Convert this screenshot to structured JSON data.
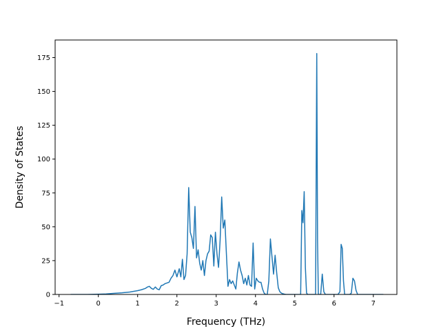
{
  "chart_data": {
    "type": "line",
    "title": "",
    "xlabel": "Frequency (THz)",
    "ylabel": "Density of States",
    "xlim": [
      -1.1,
      7.6
    ],
    "ylim": [
      0,
      188
    ],
    "xticks": [
      -1,
      0,
      1,
      2,
      3,
      4,
      5,
      6,
      7
    ],
    "yticks": [
      0,
      25,
      50,
      75,
      100,
      125,
      150,
      175
    ],
    "grid": false,
    "legend": "none",
    "colors": {
      "line": "#1f77b4"
    },
    "series": [
      {
        "x": [
          -0.7,
          -0.5,
          -0.3,
          -0.1,
          0.0,
          0.2,
          0.4,
          0.6,
          0.8,
          1.0,
          1.1,
          1.2,
          1.25,
          1.3,
          1.35,
          1.4,
          1.45,
          1.5,
          1.55,
          1.6,
          1.65,
          1.7,
          1.75,
          1.8,
          1.85,
          1.9,
          1.95,
          2.0,
          2.03,
          2.06,
          2.1,
          2.14,
          2.18,
          2.22,
          2.26,
          2.3,
          2.34,
          2.38,
          2.42,
          2.46,
          2.5,
          2.54,
          2.58,
          2.62,
          2.66,
          2.7,
          2.74,
          2.78,
          2.82,
          2.86,
          2.9,
          2.94,
          2.98,
          3.02,
          3.06,
          3.1,
          3.14,
          3.18,
          3.22,
          3.26,
          3.3,
          3.34,
          3.38,
          3.42,
          3.46,
          3.5,
          3.54,
          3.58,
          3.62,
          3.66,
          3.7,
          3.74,
          3.78,
          3.82,
          3.86,
          3.9,
          3.94,
          3.98,
          4.02,
          4.06,
          4.1,
          4.14,
          4.18,
          4.22,
          4.26,
          4.3,
          4.34,
          4.38,
          4.42,
          4.46,
          4.5,
          4.54,
          4.58,
          4.62,
          4.66,
          4.7,
          4.74,
          4.78,
          5.0,
          5.15,
          5.18,
          5.21,
          5.24,
          5.27,
          5.3,
          5.33,
          5.36,
          5.4,
          5.45,
          5.5,
          5.53,
          5.56,
          5.58,
          5.6,
          5.63,
          5.66,
          5.7,
          5.74,
          5.78,
          5.82,
          5.86,
          5.9,
          6.0,
          6.1,
          6.15,
          6.18,
          6.21,
          6.24,
          6.27,
          6.3,
          6.35,
          6.4,
          6.44,
          6.48,
          6.52,
          6.56,
          6.6,
          6.7,
          7.0,
          7.25
        ],
        "y": [
          0,
          0,
          0,
          0.1,
          0.2,
          0.4,
          0.8,
          1.2,
          1.8,
          2.8,
          3.5,
          4.5,
          5.5,
          6,
          4.5,
          3.8,
          5.5,
          4,
          3.5,
          6.5,
          7,
          8,
          8.5,
          9,
          12,
          14,
          18,
          13,
          16,
          19,
          13,
          26,
          11,
          14,
          30,
          79,
          46,
          42,
          34,
          65,
          27,
          33,
          23,
          18,
          25,
          14,
          25,
          30,
          32,
          44,
          42,
          21,
          46,
          30,
          20,
          40,
          72,
          49,
          55,
          30,
          6,
          11,
          8,
          10,
          7,
          4,
          16,
          24,
          18,
          14,
          8,
          12,
          7,
          14,
          7,
          6,
          38,
          4,
          12,
          10,
          9,
          9,
          4,
          1,
          0,
          0,
          10,
          41,
          28,
          15,
          29,
          16,
          5,
          2,
          1,
          0.5,
          0.2,
          0,
          0,
          0,
          62,
          53,
          76,
          20,
          1,
          0,
          0,
          0,
          0,
          0,
          0,
          178,
          40,
          0,
          0,
          0,
          15,
          2,
          0,
          0,
          0,
          0,
          0,
          0,
          2,
          37,
          34,
          10,
          0,
          0,
          0,
          0,
          1,
          12,
          10,
          3,
          0,
          0,
          0,
          0
        ]
      }
    ]
  }
}
